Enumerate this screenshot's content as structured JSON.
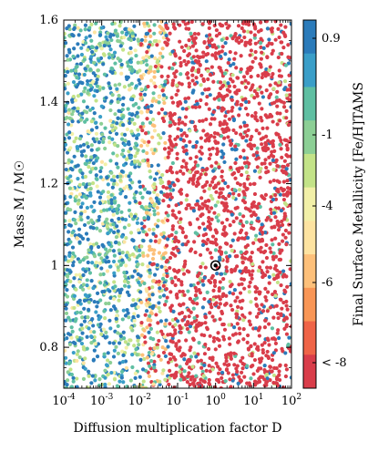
{
  "chart_data": {
    "type": "scatter",
    "xlabel": "Diffusion multiplication factor D",
    "ylabel": "Mass M / M☉",
    "x_scale": "log",
    "xlim": [
      0.0001,
      100
    ],
    "ylim": [
      0.7,
      1.6
    ],
    "x_ticks": [
      "10^-4",
      "10^-3",
      "10^-2",
      "10^-1",
      "10^0",
      "10^1",
      "10^2"
    ],
    "y_ticks": [
      "0.8",
      "1",
      "1.2",
      "1.4",
      "1.6"
    ],
    "y_tick_values": [
      0.8,
      1.0,
      1.2,
      1.4,
      1.6
    ],
    "colorbar": {
      "label": "Final Surface Metallicity [Fe/H]TAMS",
      "tick_labels": [
        "0.9",
        "-1",
        "-4",
        "-6",
        "< -8"
      ],
      "colors_top_to_bottom": [
        "#2b7bba",
        "#3a9ec8",
        "#5fbfa2",
        "#8ccf95",
        "#c3e388",
        "#f2f0a8",
        "#fde3a1",
        "#fdc07a",
        "#f99656",
        "#ef6447",
        "#d93d4a"
      ]
    },
    "highlight_point": {
      "x": 1,
      "y": 1.0,
      "marker": "circled dot"
    },
    "regions": [
      {
        "x_range": [
          0.0001,
          0.01
        ],
        "dominant_metallicity": "0.9 to -1",
        "description_colors": [
          "#2b7bba",
          "#5fbfa2",
          "#c3e388"
        ]
      },
      {
        "x_range": [
          0.01,
          0.05
        ],
        "dominant_metallicity": "mixed",
        "description_colors": [
          "#fdc07a",
          "#5fbfa2",
          "#2b7bba"
        ]
      },
      {
        "x_range": [
          0.05,
          100
        ],
        "dominant_metallicity": "< -8 with scattered 0.9 to -1",
        "description_colors": [
          "#d93d4a",
          "#2b7bba",
          "#5fbfa2"
        ]
      }
    ]
  }
}
